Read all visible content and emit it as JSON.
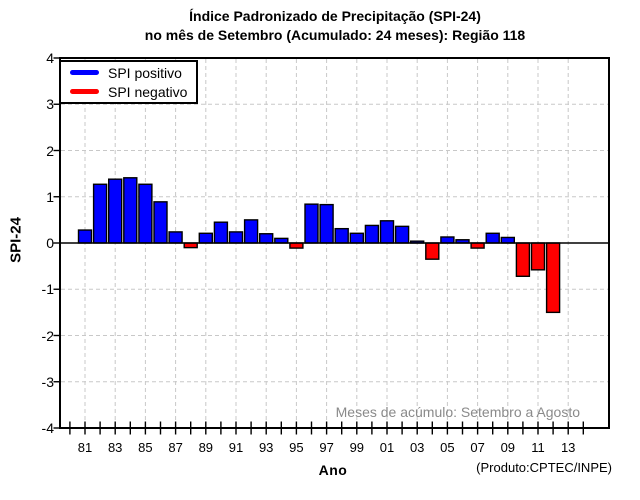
{
  "header": {
    "title_line1": "Índice Padronizado de Precipitação (SPI-24)",
    "title_line2": "no mês de Setembro (Acumulado: 24 meses): Região 118"
  },
  "axes": {
    "y_label": "SPI-24",
    "x_label": "Ano"
  },
  "legend": {
    "positive_label": "SPI positivo",
    "negative_label": "SPI negativo"
  },
  "annotation": {
    "text": "Meses de acúmulo: Setembro a Agosto"
  },
  "footer": {
    "credit": "(Produto:CPTEC/INPE)"
  },
  "colors": {
    "positive": "#0000ff",
    "negative": "#ff0000",
    "grid": "#c8c8c8",
    "annotation_text": "#8a8a8a",
    "axis": "#000000"
  },
  "chart_data": {
    "type": "bar",
    "title": "Índice Padronizado de Precipitação (SPI-24) no mês de Setembro (Acumulado: 24 meses): Região 118",
    "xlabel": "Ano",
    "ylabel": "SPI-24",
    "ylim": [
      -4,
      4
    ],
    "y_ticks": [
      4,
      3,
      2,
      1,
      0,
      -1,
      -2,
      -3,
      -4
    ],
    "x_minor_tick_year_range": [
      1980,
      2014
    ],
    "grid": true,
    "legend_position": "top-left",
    "legend": [
      "SPI positivo",
      "SPI negativo"
    ],
    "annotation": "Meses de acúmulo: Setembro a Agosto",
    "categories": [
      1981,
      1982,
      1983,
      1984,
      1985,
      1986,
      1987,
      1988,
      1989,
      1990,
      1991,
      1992,
      1993,
      1994,
      1995,
      1996,
      1997,
      1998,
      1999,
      2000,
      2001,
      2002,
      2003,
      2004,
      2005,
      2006,
      2007,
      2008,
      2009,
      2010,
      2011,
      2012
    ],
    "values": [
      0.28,
      1.27,
      1.38,
      1.41,
      1.27,
      0.89,
      0.24,
      -0.1,
      0.21,
      0.45,
      0.24,
      0.5,
      0.2,
      0.1,
      -0.11,
      0.84,
      0.83,
      0.31,
      0.21,
      0.38,
      0.48,
      0.36,
      0.04,
      -0.35,
      0.13,
      0.07,
      -0.11,
      0.21,
      0.12,
      -0.72,
      -0.58,
      -1.5
    ],
    "x_ticks": [
      {
        "year": 1981,
        "label": "81"
      },
      {
        "year": 1983,
        "label": "83"
      },
      {
        "year": 1985,
        "label": "85"
      },
      {
        "year": 1987,
        "label": "87"
      },
      {
        "year": 1989,
        "label": "89"
      },
      {
        "year": 1991,
        "label": "91"
      },
      {
        "year": 1993,
        "label": "93"
      },
      {
        "year": 1995,
        "label": "95"
      },
      {
        "year": 1997,
        "label": "97"
      },
      {
        "year": 1999,
        "label": "99"
      },
      {
        "year": 2001,
        "label": "01"
      },
      {
        "year": 2003,
        "label": "03"
      },
      {
        "year": 2005,
        "label": "05"
      },
      {
        "year": 2007,
        "label": "07"
      },
      {
        "year": 2009,
        "label": "09"
      },
      {
        "year": 2011,
        "label": "11"
      },
      {
        "year": 2013,
        "label": "13"
      }
    ]
  }
}
